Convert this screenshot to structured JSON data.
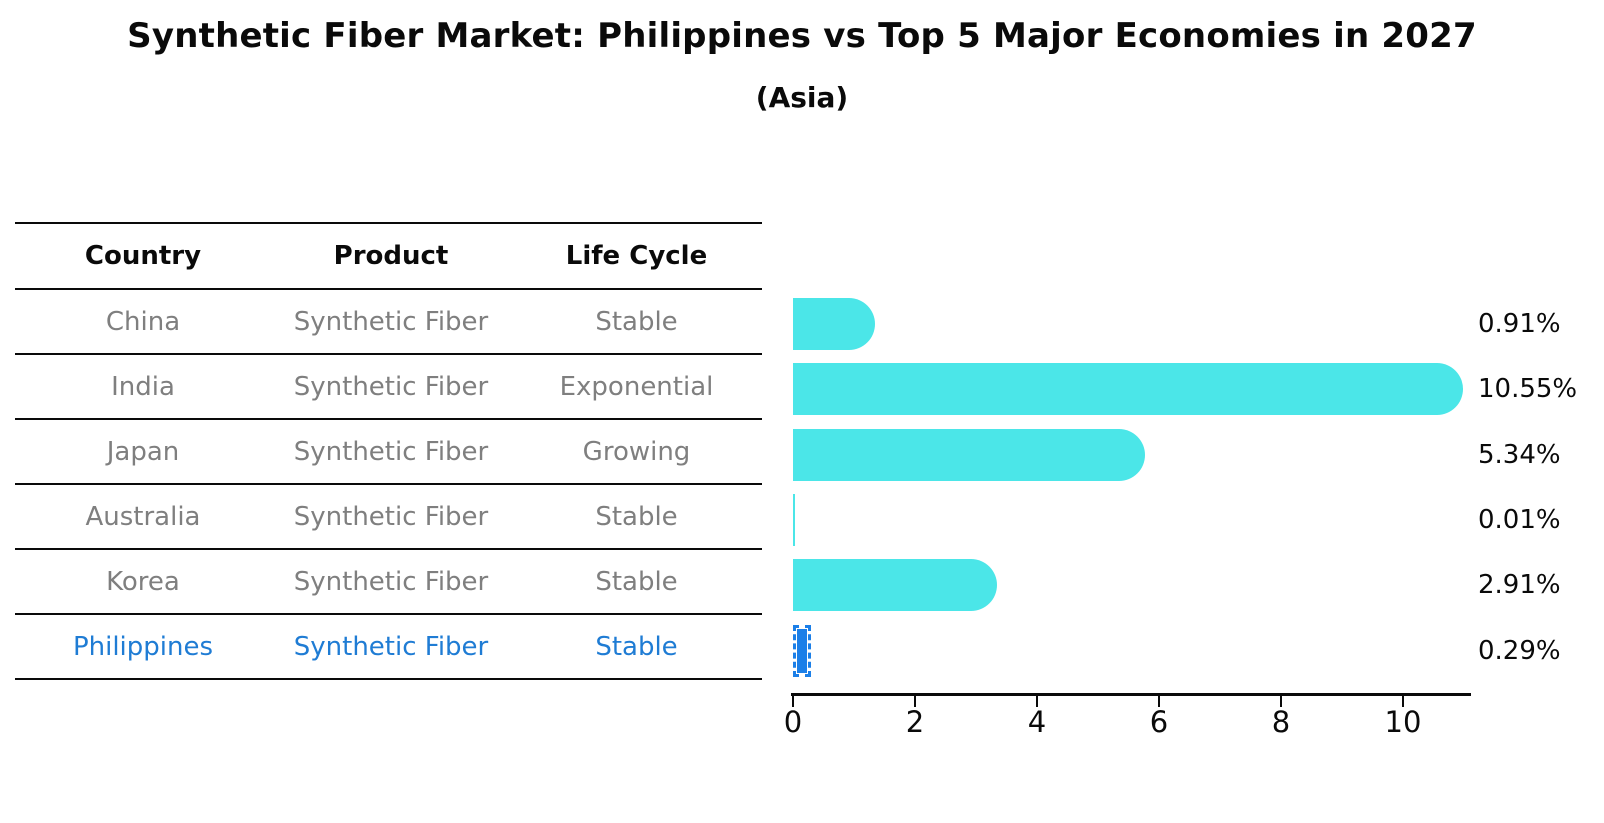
{
  "title": "Synthetic Fiber Market: Philippines vs Top 5 Major Economies in 2027",
  "subtitle": "(Asia)",
  "table": {
    "headers": [
      "Country",
      "Product",
      "Life Cycle"
    ],
    "rows": [
      {
        "country": "China",
        "product": "Synthetic Fiber",
        "life_cycle": "Stable",
        "highlight": false
      },
      {
        "country": "India",
        "product": "Synthetic Fiber",
        "life_cycle": "Exponential",
        "highlight": false
      },
      {
        "country": "Japan",
        "product": "Synthetic Fiber",
        "life_cycle": "Growing",
        "highlight": false
      },
      {
        "country": "Australia",
        "product": "Synthetic Fiber",
        "life_cycle": "Stable",
        "highlight": false
      },
      {
        "country": "Korea",
        "product": "Synthetic Fiber",
        "life_cycle": "Stable",
        "highlight": false
      },
      {
        "country": "Philippines",
        "product": "Synthetic Fiber",
        "life_cycle": "Stable",
        "highlight": true
      }
    ]
  },
  "chart_data": {
    "type": "bar",
    "orientation": "horizontal",
    "title": "Synthetic Fiber Market: Philippines vs Top 5 Major Economies in 2027",
    "subtitle": "(Asia)",
    "categories": [
      "China",
      "India",
      "Japan",
      "Australia",
      "Korea",
      "Philippines"
    ],
    "values": [
      0.91,
      10.55,
      5.34,
      0.01,
      2.91,
      0.29
    ],
    "value_labels": [
      "0.91%",
      "10.55%",
      "5.34%",
      "0.01%",
      "2.91%",
      "0.29%"
    ],
    "xlabel": "",
    "ylabel": "",
    "xticks": [
      0,
      2,
      4,
      6,
      8,
      10
    ],
    "xlim": [
      0,
      11.1
    ],
    "grid": false,
    "legend": false,
    "highlight_index": 5
  },
  "colors": {
    "bar_cyan": "#4BE6E8",
    "bar_blue": "#1B7FE8",
    "highlight_text": "#1F7CD4",
    "row_text": "#7F7F7F",
    "ink": "#0A0A0A",
    "background": "#FFFFFF"
  }
}
